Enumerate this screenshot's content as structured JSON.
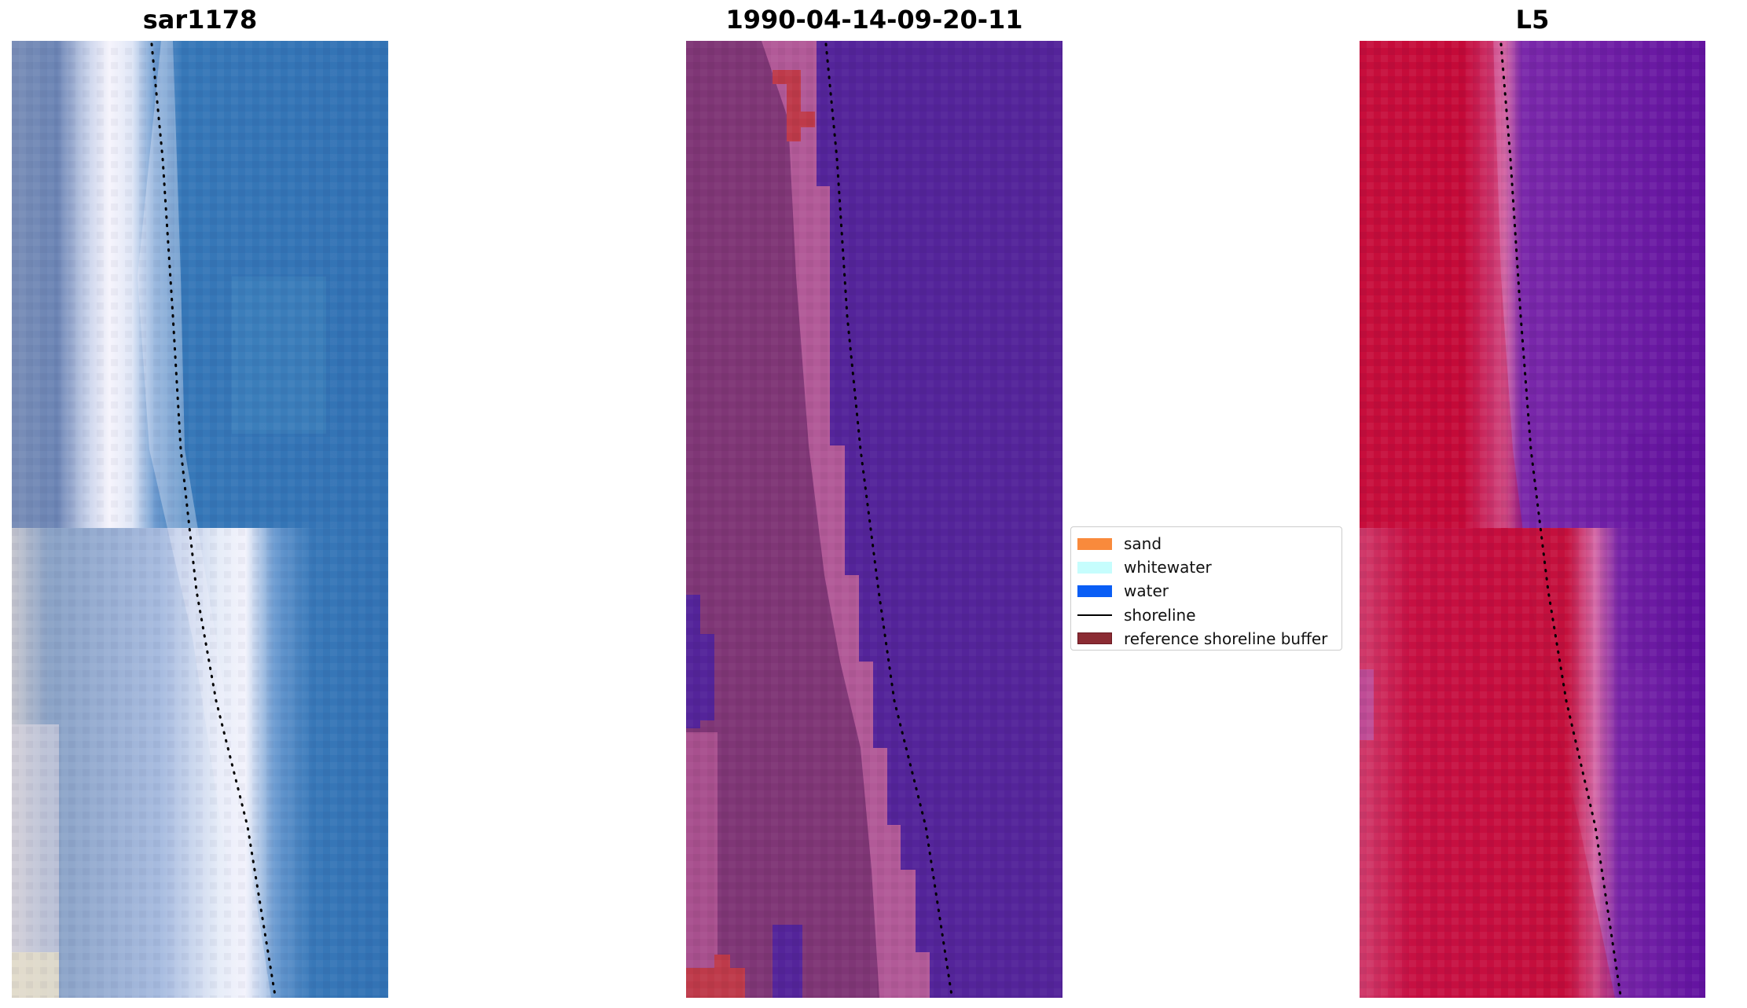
{
  "panels": [
    {
      "title": "sar1178",
      "kind": "rgb"
    },
    {
      "title": "1990-04-14-09-20-11",
      "kind": "classification"
    },
    {
      "title": "L5",
      "kind": "index"
    }
  ],
  "legend": {
    "items": [
      {
        "label": "sand",
        "type": "patch",
        "color": "#f98a3c"
      },
      {
        "label": "whitewater",
        "type": "patch",
        "color": "#c6fdfd"
      },
      {
        "label": "water",
        "type": "patch",
        "color": "#0a5ef5"
      },
      {
        "label": "shoreline",
        "type": "line",
        "color": "#000000"
      },
      {
        "label": "reference shoreline buffer",
        "type": "patch",
        "color": "#8b2b33"
      }
    ]
  },
  "colors": {
    "rgb_water": "#3474b4",
    "rgb_surf": "#e6ecf8",
    "rgb_land": "#6d88b4",
    "class_water": "#54249a",
    "class_land": "#7f3676",
    "class_land_light": "#b25a98",
    "class_red": "#be3a4a",
    "index_land": "#c70a3a",
    "index_water": "#6a1aa2",
    "index_edge": "#d46aa4"
  }
}
